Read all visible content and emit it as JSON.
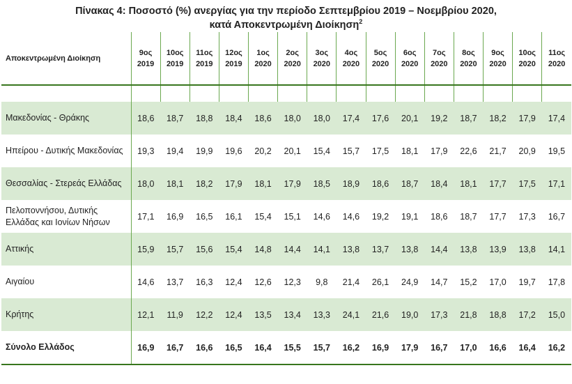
{
  "title": {
    "line1": "Πίνακας 4: Ποσοστό (%) ανεργίας για την περίοδο Σεπτεμβρίου 2019 – Νοεμβρίου 2020,",
    "line2": "κατά Αποκεντρωμένη Διοίκηση",
    "footnote": "2"
  },
  "table": {
    "corner": "Αποκεντρωμένη Διοίκηση",
    "columns": [
      {
        "month": "9ος",
        "year": "2019"
      },
      {
        "month": "10ος",
        "year": "2019"
      },
      {
        "month": "11ος",
        "year": "2019"
      },
      {
        "month": "12ος",
        "year": "2019"
      },
      {
        "month": "1ος",
        "year": "2020"
      },
      {
        "month": "2ος",
        "year": "2020"
      },
      {
        "month": "3ος",
        "year": "2020"
      },
      {
        "month": "4ος",
        "year": "2020"
      },
      {
        "month": "5ος",
        "year": "2020"
      },
      {
        "month": "6ος",
        "year": "2020"
      },
      {
        "month": "7ος",
        "year": "2020"
      },
      {
        "month": "8ος",
        "year": "2020"
      },
      {
        "month": "9ος",
        "year": "2020"
      },
      {
        "month": "10ος",
        "year": "2020"
      },
      {
        "month": "11ος",
        "year": "2020"
      }
    ],
    "rows": [
      {
        "label": "Μακεδονίας - Θράκης",
        "values": [
          "18,6",
          "18,7",
          "18,8",
          "18,4",
          "18,6",
          "18,0",
          "18,0",
          "17,4",
          "17,6",
          "20,1",
          "19,2",
          "18,7",
          "18,2",
          "17,9",
          "17,4"
        ]
      },
      {
        "label": "Ηπείρου - Δυτικής Μακεδονίας",
        "values": [
          "19,3",
          "19,4",
          "19,9",
          "19,6",
          "20,2",
          "20,1",
          "15,4",
          "15,7",
          "17,5",
          "18,1",
          "17,9",
          "22,6",
          "21,7",
          "20,9",
          "19,5"
        ]
      },
      {
        "label": "Θεσσαλίας - Στερεάς Ελλάδας",
        "values": [
          "18,0",
          "18,1",
          "18,2",
          "17,9",
          "18,1",
          "17,9",
          "18,5",
          "18,9",
          "18,6",
          "18,7",
          "18,4",
          "18,1",
          "17,7",
          "17,5",
          "17,1"
        ]
      },
      {
        "label": "Πελοποννήσου, Δυτικής Ελλάδας και Ιονίων Νήσων",
        "values": [
          "17,1",
          "16,9",
          "16,5",
          "16,1",
          "15,4",
          "15,1",
          "14,6",
          "14,6",
          "19,2",
          "19,1",
          "18,6",
          "18,7",
          "17,7",
          "17,3",
          "16,7"
        ]
      },
      {
        "label": "Αττικής",
        "values": [
          "15,9",
          "15,7",
          "15,6",
          "15,4",
          "14,8",
          "14,4",
          "14,1",
          "13,8",
          "13,7",
          "13,8",
          "14,4",
          "13,8",
          "13,9",
          "13,8",
          "14,1"
        ]
      },
      {
        "label": "Αιγαίου",
        "values": [
          "14,6",
          "13,7",
          "16,3",
          "12,4",
          "12,6",
          "12,3",
          "9,8",
          "21,4",
          "26,1",
          "24,9",
          "14,7",
          "15,2",
          "17,0",
          "19,7",
          "17,8"
        ]
      },
      {
        "label": "Κρήτης",
        "values": [
          "12,1",
          "11,9",
          "12,2",
          "12,4",
          "13,5",
          "13,4",
          "13,3",
          "24,1",
          "21,6",
          "19,0",
          "17,3",
          "21,8",
          "18,8",
          "17,2",
          "15,0"
        ]
      }
    ],
    "total": {
      "label": "Σύνολο Ελλάδος",
      "values": [
        "16,9",
        "16,7",
        "16,6",
        "16,5",
        "16,4",
        "15,5",
        "15,7",
        "16,2",
        "16,9",
        "17,9",
        "16,7",
        "17,0",
        "16,6",
        "16,4",
        "16,2"
      ]
    }
  }
}
